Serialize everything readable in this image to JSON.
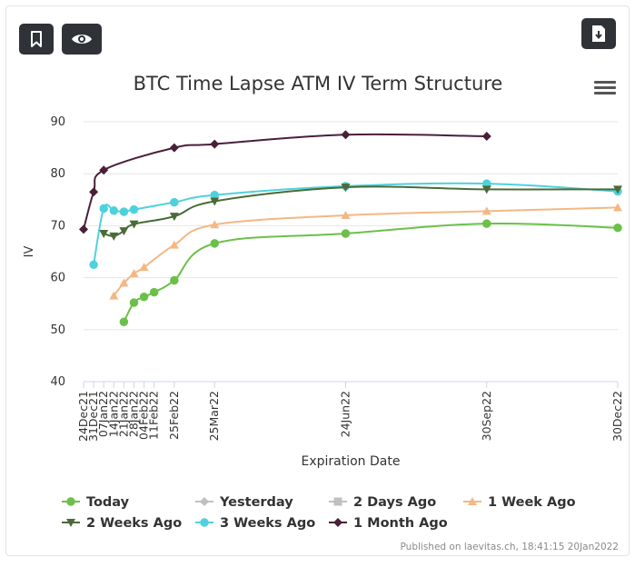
{
  "toolbar": {
    "bookmark_icon": "bookmark-icon",
    "eye_icon": "eye-icon",
    "download_icon": "download-icon",
    "menu_icon": "hamburger-menu-icon"
  },
  "footer": {
    "published": "Published on laevitas.ch, 18:41:15 20Jan2022"
  },
  "chart_data": {
    "type": "line",
    "title": "BTC Time Lapse ATM IV Term Structure",
    "xlabel": "Expiration Date",
    "ylabel": "IV",
    "ylim": [
      40,
      90
    ],
    "yticks": [
      40,
      50,
      60,
      70,
      80,
      90
    ],
    "grid": true,
    "legend_position": "bottom",
    "x_ticks": [
      "24Dec21",
      "31Dec21",
      "07Jan22",
      "14Jan22",
      "21Jan22",
      "28Jan22",
      "04Feb22",
      "11Feb22",
      "25Feb22",
      "25Mar22",
      "24Jun22",
      "30Sep22",
      "30Dec22"
    ],
    "series": [
      {
        "name": "Today",
        "color": "#6cc04a",
        "marker": "circle",
        "x": [
          "21Jan22",
          "28Jan22",
          "04Feb22",
          "11Feb22",
          "25Feb22",
          "25Mar22",
          "24Jun22",
          "30Sep22",
          "30Dec22"
        ],
        "values": [
          51.5,
          55.2,
          56.3,
          57.2,
          59.5,
          66.6,
          68.5,
          70.4,
          69.6
        ]
      },
      {
        "name": "Yesterday",
        "color": "#c0c0c0",
        "marker": "diamond",
        "x": [],
        "values": []
      },
      {
        "name": "2 Days Ago",
        "color": "#c0c0c0",
        "marker": "square",
        "x": [],
        "values": []
      },
      {
        "name": "1 Week Ago",
        "color": "#f4b783",
        "marker": "triangle",
        "x": [
          "14Jan22",
          "21Jan22",
          "28Jan22",
          "04Feb22",
          "25Feb22",
          "25Mar22",
          "24Jun22",
          "30Sep22",
          "30Dec22"
        ],
        "values": [
          56.5,
          59.0,
          60.8,
          62.0,
          66.3,
          70.2,
          72.0,
          72.8,
          73.5
        ]
      },
      {
        "name": "2 Weeks Ago",
        "color": "#4a6b38",
        "marker": "triangle-down",
        "x": [
          "07Jan22",
          "14Jan22",
          "21Jan22",
          "28Jan22",
          "25Feb22",
          "25Mar22",
          "24Jun22",
          "30Sep22",
          "30Dec22"
        ],
        "values": [
          68.5,
          68.0,
          69.0,
          70.3,
          71.8,
          74.7,
          77.4,
          77.0,
          77.0
        ]
      },
      {
        "name": "3 Weeks Ago",
        "color": "#4fd1dc",
        "marker": "circle",
        "x": [
          "31Dec21",
          "07Jan22",
          "14Jan22",
          "21Jan22",
          "28Jan22",
          "25Feb22",
          "25Mar22",
          "24Jun22",
          "30Sep22",
          "30Dec22"
        ],
        "values": [
          62.5,
          73.3,
          72.9,
          72.7,
          73.1,
          74.5,
          75.9,
          77.6,
          78.1,
          76.6
        ]
      },
      {
        "name": "1 Month Ago",
        "color": "#4a1f3a",
        "marker": "diamond",
        "x": [
          "24Dec21",
          "31Dec21",
          "07Jan22",
          "25Feb22",
          "25Mar22",
          "24Jun22",
          "30Sep22"
        ],
        "values": [
          69.3,
          76.5,
          80.7,
          85.0,
          85.7,
          87.5,
          87.2
        ]
      },
      {
        "name": "1 Month Ago",
        "_skip": true,
        "x": [],
        "values": []
      }
    ]
  }
}
